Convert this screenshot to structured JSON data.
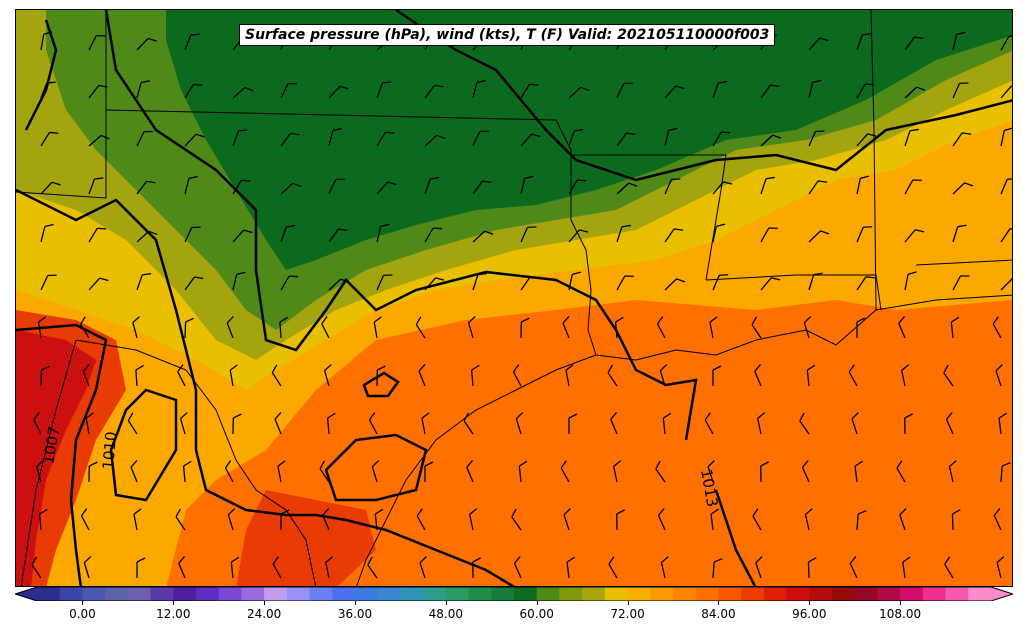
{
  "title": "Surface pressure (hPa), wind (kts), T (F) Valid: 202105110000f003",
  "isobar_labels": [
    "1007",
    "1010",
    "1013"
  ],
  "colorbar": {
    "tick_labels": [
      "0.00",
      "12.00",
      "24.00",
      "36.00",
      "48.00",
      "60.00",
      "72.00",
      "84.00",
      "96.00",
      "108.00"
    ],
    "tick_values": [
      0,
      12,
      24,
      36,
      48,
      60,
      72,
      84,
      96,
      108
    ],
    "range": [
      -6,
      120
    ],
    "step": 3,
    "extend": "both",
    "colors": [
      "#2b2d8f",
      "#3b45a8",
      "#4c57b0",
      "#5a62a8",
      "#6a5fb0",
      "#5a3aa8",
      "#4d1fa0",
      "#5e2dc2",
      "#7a49d4",
      "#9a6ae0",
      "#c39cf0",
      "#9b90f8",
      "#6a80f5",
      "#4a72ee",
      "#3a7be0",
      "#3a86d0",
      "#2f93b8",
      "#2e9c8c",
      "#2a9a66",
      "#1f8c4a",
      "#167c3a",
      "#0c6b1f",
      "#4f8a18",
      "#7f9b12",
      "#a8a80e",
      "#e9c000",
      "#f5b000",
      "#fb9b00",
      "#ff8500",
      "#ff6f00",
      "#f65800",
      "#ea3e00",
      "#e01d05",
      "#cc0e0e",
      "#b20c0c",
      "#960a0a",
      "#8e0a26",
      "#b00a46",
      "#d40d6a",
      "#ef2f8e",
      "#f45ab0",
      "#f98ccc"
    ]
  },
  "legend_colors": {
    "dark_green": "#0b6a1e",
    "green": "#4f8a18",
    "olive": "#a3a40e",
    "yellow": "#e9bf00",
    "orange_light": "#fba800",
    "orange": "#ff7000",
    "red_orange": "#e83c04",
    "red": "#cc0f0f"
  }
}
